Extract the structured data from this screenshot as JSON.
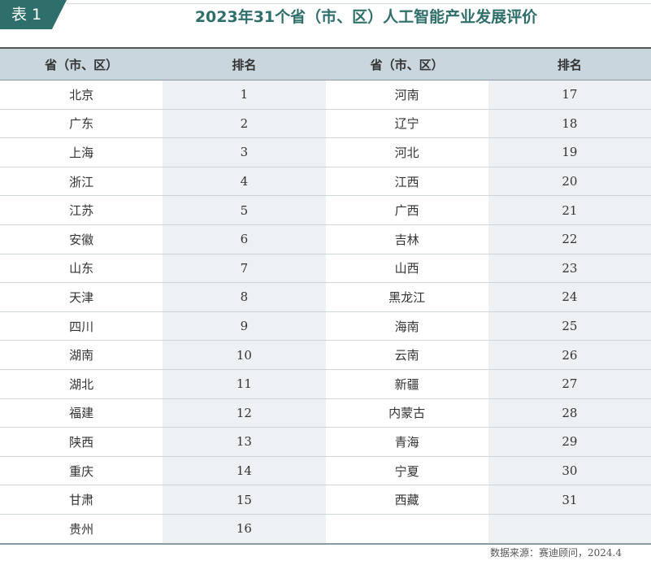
{
  "tag": "表 1",
  "title": "2023年31个省（市、区）人工智能产业发展评价",
  "headers": [
    "省（市、区）",
    "排名",
    "省（市、区）",
    "排名"
  ],
  "rows": [
    [
      "北京",
      "1",
      "河南",
      "17"
    ],
    [
      "广东",
      "2",
      "辽宁",
      "18"
    ],
    [
      "上海",
      "3",
      "河北",
      "19"
    ],
    [
      "浙江",
      "4",
      "江西",
      "20"
    ],
    [
      "江苏",
      "5",
      "广西",
      "21"
    ],
    [
      "安徽",
      "6",
      "吉林",
      "22"
    ],
    [
      "山东",
      "7",
      "山西",
      "23"
    ],
    [
      "天津",
      "8",
      "黑龙江",
      "24"
    ],
    [
      "四川",
      "9",
      "海南",
      "25"
    ],
    [
      "湖南",
      "10",
      "云南",
      "26"
    ],
    [
      "湖北",
      "11",
      "新疆",
      "27"
    ],
    [
      "福建",
      "12",
      "内蒙古",
      "28"
    ],
    [
      "陕西",
      "13",
      "青海",
      "29"
    ],
    [
      "重庆",
      "14",
      "宁夏",
      "30"
    ],
    [
      "甘肃",
      "15",
      "西藏",
      "31"
    ],
    [
      "贵州",
      "16",
      "",
      ""
    ]
  ],
  "source": "数据来源：赛迪顾问，2024.4",
  "colors": {
    "accent": "#2f6f6b",
    "header_bg": "#c9d6dd",
    "rank_bg": "#eef1f3"
  }
}
